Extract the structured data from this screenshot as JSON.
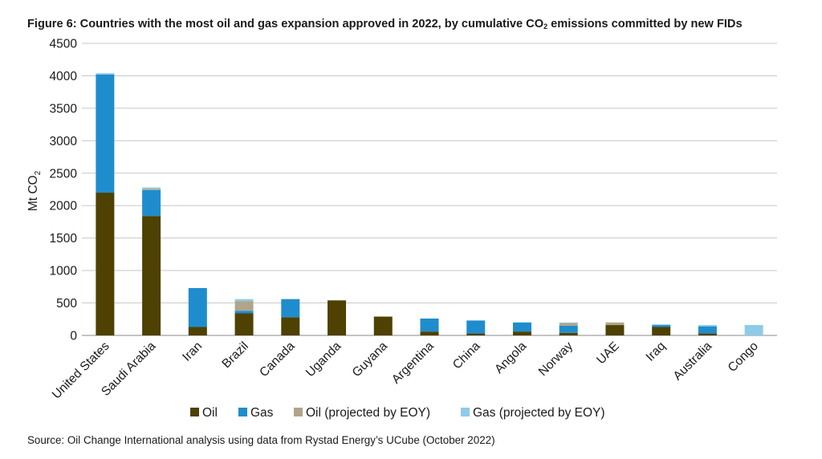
{
  "chart_data": {
    "type": "bar",
    "stacked": true,
    "title_main": "Figure 6: Countries with the most oil and gas expansion approved in 2022, by cumulative CO",
    "title_sub": "2",
    "title_end": " emissions committed by new FIDs",
    "ylabel_main": "Mt CO",
    "ylabel_sub": "2",
    "xlabel": "",
    "ylim": [
      0,
      4500
    ],
    "yticks": [
      0,
      500,
      1000,
      1500,
      2000,
      2500,
      3000,
      3500,
      4000,
      4500
    ],
    "grid": true,
    "legend_position": "bottom",
    "categories": [
      "United States",
      "Saudi Arabia",
      "Iran",
      "Brazil",
      "Canada",
      "Uganda",
      "Guyana",
      "Argentina",
      "China",
      "Angola",
      "Norway",
      "UAE",
      "Iraq",
      "Australia",
      "Congo"
    ],
    "series": [
      {
        "name": "Oil",
        "color": "#4e4101",
        "values": [
          2200,
          1840,
          130,
          340,
          280,
          540,
          290,
          60,
          30,
          60,
          40,
          160,
          130,
          30,
          0
        ]
      },
      {
        "name": "Gas",
        "color": "#1f8dcd",
        "values": [
          1820,
          400,
          600,
          40,
          280,
          0,
          0,
          200,
          200,
          140,
          110,
          0,
          30,
          110,
          0
        ]
      },
      {
        "name": "Oil (projected by EOY)",
        "color": "#b0a48a",
        "values": [
          0,
          20,
          0,
          150,
          0,
          0,
          0,
          0,
          0,
          0,
          40,
          40,
          0,
          0,
          0
        ]
      },
      {
        "name": "Gas (projected by EOY)",
        "color": "#8ecbe8",
        "values": [
          20,
          20,
          0,
          30,
          0,
          0,
          0,
          0,
          0,
          0,
          10,
          0,
          10,
          20,
          160
        ]
      }
    ]
  },
  "source": "Source: Oil Change International analysis using data from Rystad Energy’s UCube (October 2022)"
}
